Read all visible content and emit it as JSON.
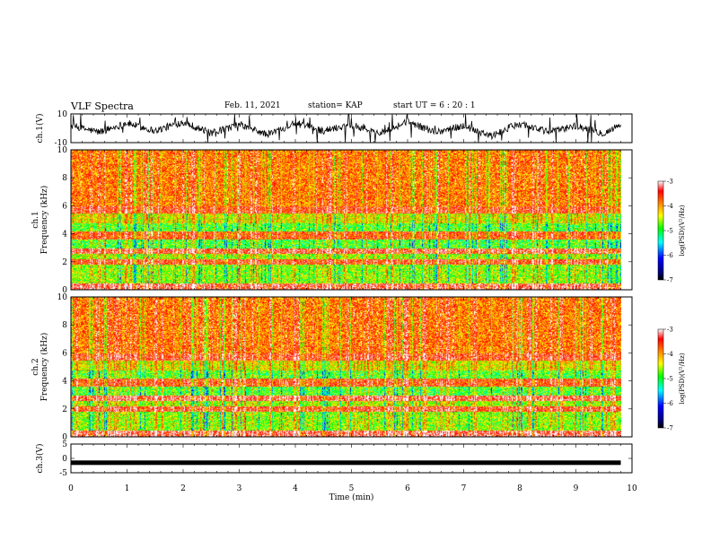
{
  "header": {
    "title": "VLF Spectra",
    "date": "Feb. 11, 2021",
    "station": "station= KAP",
    "start_ut": "start  UT =  6 : 20 : 1"
  },
  "chart_data": [
    {
      "type": "line",
      "ylabel": "ch.1(V)",
      "ylim": [
        -10,
        10
      ],
      "yticks": [
        "10",
        "-10"
      ],
      "xlim": [
        0,
        10
      ],
      "description_series": "ch.1 waveform",
      "series": [
        {
          "name": "",
          "x": [
            0,
            0.5,
            1,
            1.5,
            2,
            2.5,
            3,
            3.5,
            4,
            4.5,
            5,
            5.5,
            6,
            6.5,
            7,
            7.5,
            8,
            8.5,
            9,
            9.5,
            9.8
          ],
          "values": [
            2,
            -3,
            4,
            -2,
            5,
            -4,
            3,
            -5,
            4,
            -2,
            3,
            -4,
            5,
            -3,
            2,
            -6,
            4,
            -3,
            2,
            -4,
            3
          ]
        }
      ]
    },
    {
      "type": "heatmap",
      "ylabel": "ch.1\nFrequency  (kHz)",
      "ylim": [
        0,
        10
      ],
      "yticks": [
        "0",
        "2",
        "4",
        "6",
        "8",
        "10"
      ],
      "xlim": [
        0,
        10
      ],
      "colorbar": {
        "label": "log(PSD)(V²/Hz)",
        "ticks": [
          "-3",
          "-4",
          "-5",
          "-6",
          "-7"
        ],
        "range": [
          -7,
          -3
        ]
      }
    },
    {
      "type": "heatmap",
      "ylabel": "ch.2\nFrequency  (kHz)",
      "ylim": [
        0,
        10
      ],
      "yticks": [
        "0",
        "2",
        "4",
        "6",
        "8",
        "10"
      ],
      "xlim": [
        0,
        10
      ],
      "colorbar": {
        "label": "log(PSD)(V²/Hz)",
        "ticks": [
          "-3",
          "-4",
          "-5",
          "-6",
          "-7"
        ],
        "range": [
          -7,
          -3
        ]
      }
    },
    {
      "type": "line",
      "ylabel": "ch.3(V)",
      "ylim": [
        -5,
        5
      ],
      "yticks": [
        "5",
        "0",
        "-5"
      ],
      "xlim": [
        0,
        10
      ],
      "xlabel": "Time  (min)",
      "xticks": [
        "0",
        "1",
        "2",
        "3",
        "4",
        "5",
        "6",
        "7",
        "8",
        "9",
        "10"
      ],
      "series": [
        {
          "name": "",
          "x": [
            0,
            9.8
          ],
          "values": [
            -1.5,
            -1.5
          ]
        }
      ]
    }
  ],
  "colors": {
    "colormap": [
      "#000080",
      "#0000ff",
      "#00ffff",
      "#00ff00",
      "#ffff00",
      "#ff8000",
      "#ff0000",
      "#ffffff"
    ],
    "axes": "#000000",
    "trace": "#000000"
  }
}
